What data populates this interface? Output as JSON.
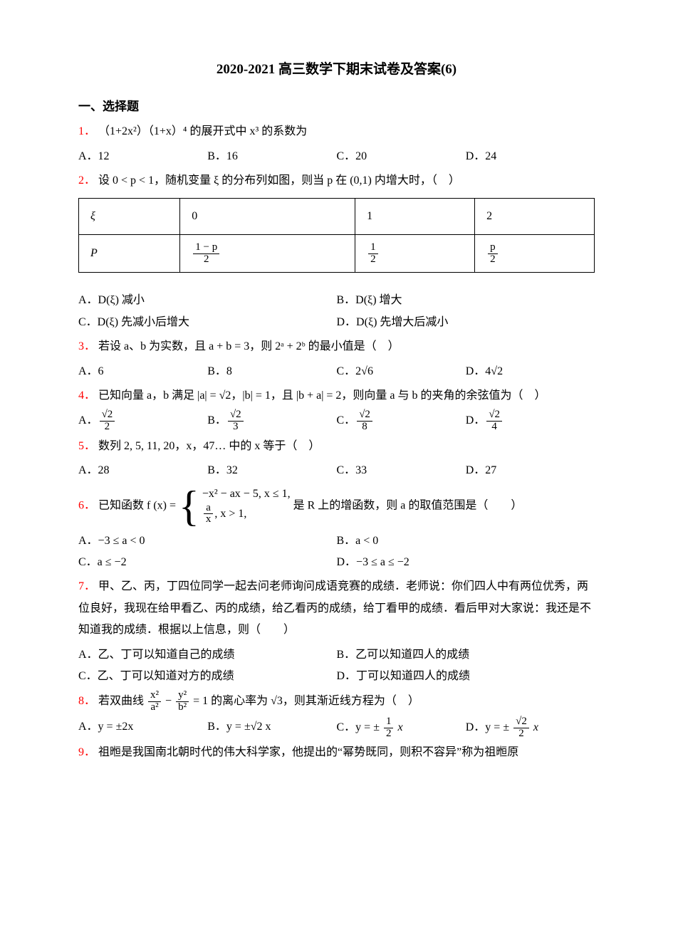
{
  "title": "2020-2021 高三数学下期末试卷及答案(6)",
  "section1": "一、选择题",
  "q1": {
    "num": "1．",
    "text": "（1+2x²）（1+x）⁴ 的展开式中 x³ 的系数为",
    "A": "A．12",
    "B": "B．16",
    "C": "C．20",
    "D": "D．24"
  },
  "q2": {
    "num": "2．",
    "text_a": "设 0 < p < 1，随机变量 ξ 的分布列如图，则当 p 在 (0,1) 内增大时，（　）",
    "tbl": {
      "r1c1": "ξ",
      "r1c2": "0",
      "r1c3": "1",
      "r1c4": "2",
      "r2c1": "P",
      "r2c2_num": "1 − p",
      "r2c2_den": "2",
      "r2c3_num": "1",
      "r2c3_den": "2",
      "r2c4_num": "p",
      "r2c4_den": "2"
    },
    "A": "A．D(ξ) 减小",
    "B": "B．D(ξ) 增大",
    "C": "C．D(ξ) 先减小后增大",
    "D": "D．D(ξ) 先增大后减小"
  },
  "q3": {
    "num": "3．",
    "text": "若设 a、b 为实数，且 a + b = 3，则 2ᵃ + 2ᵇ 的最小值是（　）",
    "A": "A．6",
    "B": "B．8",
    "C": "C．2√6",
    "D": "D．4√2"
  },
  "q4": {
    "num": "4．",
    "text": "已知向量 a，b 满足 |a| = √2，|b| = 1，且 |b + a| = 2，则向量 a 与 b 的夹角的余弦值为（　）",
    "A_num": "√2",
    "A_den": "2",
    "B_num": "√2",
    "B_den": "3",
    "C_num": "√2",
    "C_den": "8",
    "D_num": "√2",
    "D_den": "4"
  },
  "q5": {
    "num": "5．",
    "text": "数列 2, 5, 11, 20，x，47… 中的 x 等于（　）",
    "A": "A．28",
    "B": "B．32",
    "C": "C．33",
    "D": "D．27"
  },
  "q6": {
    "num": "6．",
    "pre": "已知函数 f (x) = ",
    "case1": "−x² − ax − 5, x ≤ 1,",
    "case2_num": "a",
    "case2_den": "x",
    "case2_tail": ", x > 1,",
    "post": " 是 R 上的增函数，则 a 的取值范围是（　　）",
    "A": "A．−3 ≤ a < 0",
    "B": "B．a < 0",
    "C": "C．a ≤ −2",
    "D": "D．−3 ≤ a ≤ −2"
  },
  "q7": {
    "num": "7．",
    "text": "甲、乙、丙，丁四位同学一起去问老师询问成语竞赛的成绩．老师说：你们四人中有两位优秀，两位良好，我现在给甲看乙、丙的成绩，给乙看丙的成绩，给丁看甲的成绩．看后甲对大家说：我还是不知道我的成绩．根据以上信息，则（　　）",
    "A": "A．乙、丁可以知道自己的成绩",
    "B": "B．乙可以知道四人的成绩",
    "C": "C．乙、丁可以知道对方的成绩",
    "D": "D．丁可以知道四人的成绩"
  },
  "q8": {
    "num": "8．",
    "pre": "若双曲线 ",
    "t1_num": "x²",
    "t1_den": "a²",
    "mid": " − ",
    "t2_num": "y²",
    "t2_den": "b²",
    "post": " = 1 的离心率为 √3，则其渐近线方程为（　）",
    "A": "A．y = ±2x",
    "B": "B．y = ±√2 x",
    "C_pre": "C．y = ± ",
    "C_num": "1",
    "C_den": "2",
    "C_post": " x",
    "D_pre": "D．y = ± ",
    "D_num": "√2",
    "D_den": "2",
    "D_post": " x"
  },
  "q9": {
    "num": "9．",
    "text": "祖暅是我国南北朝时代的伟大科学家，他提出的“幂势既同，则积不容异”称为祖暅原"
  }
}
